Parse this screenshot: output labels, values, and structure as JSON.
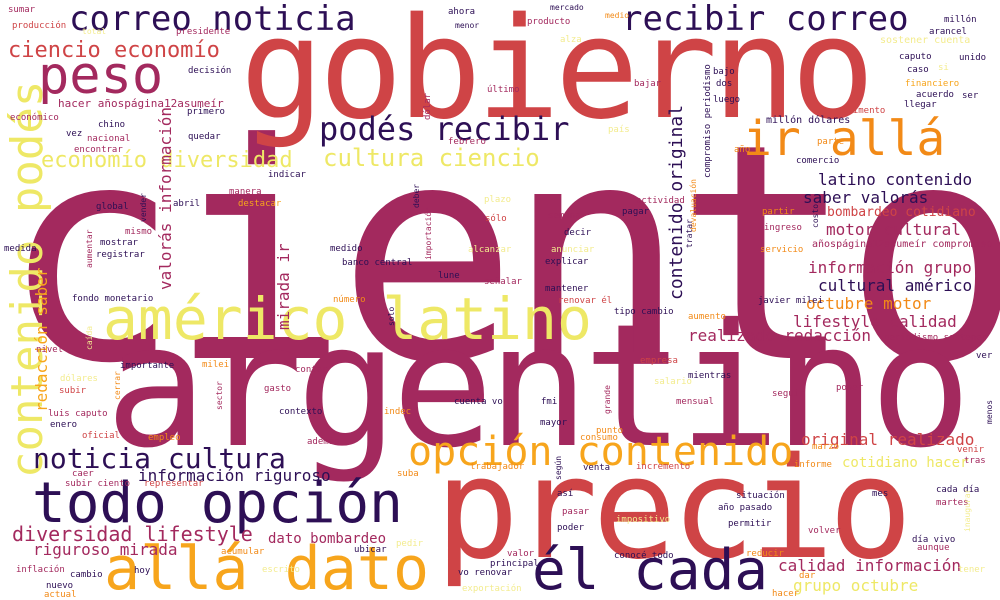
{
  "colors": {
    "dark_purple": "#2d0f55",
    "magenta": "#a3295e",
    "red": "#cf4446",
    "orange": "#f28a17",
    "amber": "#f7a51c",
    "yellow": "#eee866",
    "light_yellow": "#f3ec8f"
  },
  "words": [
    {
      "text": "ciento",
      "color": "#a3295e",
      "size": 300
    },
    {
      "text": "argentino",
      "color": "#a3295e",
      "size": 170
    },
    {
      "text": "gobierno",
      "color": "#cf4446",
      "size": 140
    },
    {
      "text": "precio",
      "color": "#cf4446",
      "size": 140
    },
    {
      "text": "américo latino",
      "color": "#eee866",
      "size": 58
    },
    {
      "text": "allá dato",
      "color": "#f7a51c",
      "size": 60
    },
    {
      "text": "todo opción",
      "color": "#2d0f55",
      "size": 56
    },
    {
      "text": "él cada",
      "color": "#2d0f55",
      "size": 56
    },
    {
      "text": "peso",
      "color": "#a3295e",
      "size": 52
    },
    {
      "text": "ir allá",
      "color": "#f28a17",
      "size": 48
    },
    {
      "text": "contenido podés",
      "color": "#eee866",
      "size": 44
    },
    {
      "text": "opción contenido",
      "color": "#f7a51c",
      "size": 40
    },
    {
      "text": "correo noticia",
      "color": "#2d0f55",
      "size": 34
    },
    {
      "text": "recibir correo",
      "color": "#2d0f55",
      "size": 34
    },
    {
      "text": "podés recibir",
      "color": "#2d0f55",
      "size": 32
    },
    {
      "text": "noticia cultura",
      "color": "#2d0f55",
      "size": 28
    },
    {
      "text": "cultura ciencio",
      "color": "#eee866",
      "size": 24
    },
    {
      "text": "economío diversidad",
      "color": "#eee866",
      "size": 22
    },
    {
      "text": "ciencio economío",
      "color": "#cf4446",
      "size": 22
    },
    {
      "text": "diversidad lifestyle",
      "color": "#a3295e",
      "size": 20
    },
    {
      "text": "contenido original",
      "color": "#2d0f55",
      "size": 18
    },
    {
      "text": "valorás información",
      "color": "#a3295e",
      "size": 16
    },
    {
      "text": "mirada ir",
      "color": "#a3295e",
      "size": 16
    },
    {
      "text": "redacción saber",
      "color": "#f7a51c",
      "size": 16
    },
    {
      "text": "latino contenido",
      "color": "#2d0f55",
      "size": 16
    },
    {
      "text": "saber valorás",
      "color": "#2d0f55",
      "size": 16
    },
    {
      "text": "motor cultural",
      "color": "#a3295e",
      "size": 16
    },
    {
      "text": "información grupo",
      "color": "#a3295e",
      "size": 16
    },
    {
      "text": "cultural américo",
      "color": "#2d0f55",
      "size": 16
    },
    {
      "text": "octubre motor",
      "color": "#f28a17",
      "size": 16
    },
    {
      "text": "lifestyle calidad",
      "color": "#a3295e",
      "size": 16
    },
    {
      "text": "realizado redacción",
      "color": "#a3295e",
      "size": 16
    },
    {
      "text": "original realizado",
      "color": "#cf4446",
      "size": 16
    },
    {
      "text": "información riguroso",
      "color": "#2d0f55",
      "size": 16
    },
    {
      "text": "calidad información",
      "color": "#a3295e",
      "size": 16
    },
    {
      "text": "grupo octubre",
      "color": "#eee866",
      "size": 16
    },
    {
      "text": "riguroso mirada",
      "color": "#a3295e",
      "size": 16
    },
    {
      "text": "dato bombardeo",
      "color": "#a3295e",
      "size": 14
    },
    {
      "text": "cotidiano hacer",
      "color": "#eee866",
      "size": 14
    },
    {
      "text": "bombardeo cotidiano",
      "color": "#cf4446",
      "size": 13
    },
    {
      "text": "hacer añospágina12asumeír",
      "color": "#a3295e",
      "size": 11
    },
    {
      "text": "añospágina12asumeír compromiso",
      "color": "#a3295e",
      "size": 10
    },
    {
      "text": "compromiso periodismo",
      "color": "#2d0f55",
      "size": 9
    },
    {
      "text": "periodismo sostener",
      "color": "#a3295e",
      "size": 9
    },
    {
      "text": "sostener cuenta",
      "color": "#f3ec8f",
      "size": 10
    },
    {
      "text": "millón dólares",
      "color": "#2d0f55",
      "size": 10
    },
    {
      "text": "fondo monetario",
      "color": "#2d0f55",
      "size": 9
    },
    {
      "text": "banco central",
      "color": "#2d0f55",
      "size": 9
    },
    {
      "text": "tipo cambio",
      "color": "#2d0f55",
      "size": 9
    },
    {
      "text": "javier milei",
      "color": "#2d0f55",
      "size": 9
    },
    {
      "text": "luis caputo",
      "color": "#a3295e",
      "size": 9
    },
    {
      "text": "cuenta vo",
      "color": "#2d0f55",
      "size": 9
    },
    {
      "text": "vo renovar",
      "color": "#2d0f55",
      "size": 9
    },
    {
      "text": "renovar él",
      "color": "#cf4446",
      "size": 9
    },
    {
      "text": "subir ciento",
      "color": "#a3295e",
      "size": 9
    },
    {
      "text": "día vivo",
      "color": "#2d0f55",
      "size": 9
    },
    {
      "text": "año pasado",
      "color": "#2d0f55",
      "size": 9
    },
    {
      "text": "cada día",
      "color": "#2d0f55",
      "size": 9
    },
    {
      "text": "conocé todo",
      "color": "#2d0f55",
      "size": 9
    },
    {
      "text": "sumar",
      "color": "#a3295e",
      "size": 9
    },
    {
      "text": "producción",
      "color": "#cf4446",
      "size": 9
    },
    {
      "text": "total",
      "color": "#f3ec8f",
      "size": 8
    },
    {
      "text": "presidente",
      "color": "#a3295e",
      "size": 9
    },
    {
      "text": "ahora",
      "color": "#2d0f55",
      "size": 9
    },
    {
      "text": "menor",
      "color": "#2d0f55",
      "size": 8
    },
    {
      "text": "producto",
      "color": "#a3295e",
      "size": 9
    },
    {
      "text": "mercado",
      "color": "#2d0f55",
      "size": 8
    },
    {
      "text": "medio",
      "color": "#f28a17",
      "size": 8
    },
    {
      "text": "alza",
      "color": "#f3ec8f",
      "size": 9
    },
    {
      "text": "millón",
      "color": "#2d0f55",
      "size": 9
    },
    {
      "text": "arancel",
      "color": "#2d0f55",
      "size": 9
    },
    {
      "text": "unido",
      "color": "#2d0f55",
      "size": 9
    },
    {
      "text": "si",
      "color": "#f3ec8f",
      "size": 9
    },
    {
      "text": "caputo",
      "color": "#2d0f55",
      "size": 9
    },
    {
      "text": "caso",
      "color": "#2d0f55",
      "size": 9
    },
    {
      "text": "financiero",
      "color": "#f7a51c",
      "size": 9
    },
    {
      "text": "acuerdo",
      "color": "#2d0f55",
      "size": 9
    },
    {
      "text": "ser",
      "color": "#2d0f55",
      "size": 9
    },
    {
      "text": "llegar",
      "color": "#2d0f55",
      "size": 9
    },
    {
      "text": "alimento",
      "color": "#cf4446",
      "size": 9
    },
    {
      "text": "decisión",
      "color": "#2d0f55",
      "size": 9
    },
    {
      "text": "primero",
      "color": "#2d0f55",
      "size": 9
    },
    {
      "text": "dólar",
      "color": "#a3295e",
      "size": 9
    },
    {
      "text": "último",
      "color": "#a3295e",
      "size": 9
    },
    {
      "text": "bajar",
      "color": "#a3295e",
      "size": 9
    },
    {
      "text": "bajo",
      "color": "#2d0f55",
      "size": 9
    },
    {
      "text": "dos",
      "color": "#2d0f55",
      "size": 9
    },
    {
      "text": "luego",
      "color": "#2d0f55",
      "size": 9
    },
    {
      "text": "económico",
      "color": "#a3295e",
      "size": 9
    },
    {
      "text": "chino",
      "color": "#2d0f55",
      "size": 9
    },
    {
      "text": "vez",
      "color": "#2d0f55",
      "size": 9
    },
    {
      "text": "nacional",
      "color": "#a3295e",
      "size": 9
    },
    {
      "text": "encontrar",
      "color": "#a3295e",
      "size": 9
    },
    {
      "text": "quedar",
      "color": "#2d0f55",
      "size": 9
    },
    {
      "text": "país",
      "color": "#f3ec8f",
      "size": 9
    },
    {
      "text": "febrero",
      "color": "#a3295e",
      "size": 9
    },
    {
      "text": "año",
      "color": "#f28a17",
      "size": 9
    },
    {
      "text": "parte",
      "color": "#f28a17",
      "size": 9
    },
    {
      "text": "comercio",
      "color": "#2d0f55",
      "size": 9
    },
    {
      "text": "devaluación",
      "color": "#f28a17",
      "size": 8
    },
    {
      "text": "indicar",
      "color": "#2d0f55",
      "size": 9
    },
    {
      "text": "manera",
      "color": "#a3295e",
      "size": 9
    },
    {
      "text": "abril",
      "color": "#2d0f55",
      "size": 9
    },
    {
      "text": "destacar",
      "color": "#f7a51c",
      "size": 9
    },
    {
      "text": "global",
      "color": "#2d0f55",
      "size": 9
    },
    {
      "text": "vender",
      "color": "#2d0f55",
      "size": 8
    },
    {
      "text": "mismo",
      "color": "#a3295e",
      "size": 9
    },
    {
      "text": "mostrar",
      "color": "#2d0f55",
      "size": 9
    },
    {
      "text": "registrar",
      "color": "#2d0f55",
      "size": 9
    },
    {
      "text": "aumentar",
      "color": "#a3295e",
      "size": 8
    },
    {
      "text": "medida",
      "color": "#2d0f55",
      "size": 9
    },
    {
      "text": "medido",
      "color": "#2d0f55",
      "size": 9
    },
    {
      "text": "importación",
      "color": "#a3295e",
      "size": 8
    },
    {
      "text": "deber",
      "color": "#2d0f55",
      "size": 8
    },
    {
      "text": "plazo",
      "color": "#f3ec8f",
      "size": 9
    },
    {
      "text": "sólo",
      "color": "#cf4446",
      "size": 9
    },
    {
      "text": "alcanzar",
      "color": "#f3ec8f",
      "size": 9
    },
    {
      "text": "semana",
      "color": "#a3295e",
      "size": 9
    },
    {
      "text": "decir",
      "color": "#2d0f55",
      "size": 9
    },
    {
      "text": "anunciar",
      "color": "#f3ec8f",
      "size": 9
    },
    {
      "text": "explicar",
      "color": "#2d0f55",
      "size": 9
    },
    {
      "text": "actividad",
      "color": "#a3295e",
      "size": 9
    },
    {
      "text": "pagar",
      "color": "#2d0f55",
      "size": 9
    },
    {
      "text": "tratar",
      "color": "#2d0f55",
      "size": 8
    },
    {
      "text": "partir",
      "color": "#f28a17",
      "size": 9
    },
    {
      "text": "ingreso",
      "color": "#a3295e",
      "size": 9
    },
    {
      "text": "servicio",
      "color": "#f28a17",
      "size": 9
    },
    {
      "text": "costo",
      "color": "#2d0f55",
      "size": 8
    },
    {
      "text": "lune",
      "color": "#2d0f55",
      "size": 9
    },
    {
      "text": "señalar",
      "color": "#a3295e",
      "size": 9
    },
    {
      "text": "mantener",
      "color": "#2d0f55",
      "size": 9
    },
    {
      "text": "número",
      "color": "#f28a17",
      "size": 9
    },
    {
      "text": "solo",
      "color": "#2d0f55",
      "size": 8
    },
    {
      "text": "aumento",
      "color": "#f28a17",
      "size": 9
    },
    {
      "text": "nivel",
      "color": "#a3295e",
      "size": 9
    },
    {
      "text": "caída",
      "color": "#f3ec8f",
      "size": 8
    },
    {
      "text": "milei",
      "color": "#f28a17",
      "size": 9
    },
    {
      "text": "importante",
      "color": "#2d0f55",
      "size": 9
    },
    {
      "text": "contar",
      "color": "#a3295e",
      "size": 9
    },
    {
      "text": "empresa",
      "color": "#cf4446",
      "size": 9
    },
    {
      "text": "mientras",
      "color": "#2d0f55",
      "size": 9
    },
    {
      "text": "salario",
      "color": "#f3ec8f",
      "size": 9
    },
    {
      "text": "seguir",
      "color": "#a3295e",
      "size": 9
    },
    {
      "text": "poner",
      "color": "#a3295e",
      "size": 9
    },
    {
      "text": "ver",
      "color": "#2d0f55",
      "size": 9
    },
    {
      "text": "dólares",
      "color": "#f3ec8f",
      "size": 9
    },
    {
      "text": "subir",
      "color": "#cf4446",
      "size": 9
    },
    {
      "text": "cerrar",
      "color": "#f28a17",
      "size": 8
    },
    {
      "text": "sector",
      "color": "#a3295e",
      "size": 8
    },
    {
      "text": "gasto",
      "color": "#a3295e",
      "size": 9
    },
    {
      "text": "contexto",
      "color": "#2d0f55",
      "size": 9
    },
    {
      "text": "indec",
      "color": "#f28a17",
      "size": 9
    },
    {
      "text": "grande",
      "color": "#a3295e",
      "size": 8
    },
    {
      "text": "mensual",
      "color": "#a3295e",
      "size": 9
    },
    {
      "text": "menos",
      "color": "#2d0f55",
      "size": 8
    },
    {
      "text": "enero",
      "color": "#2d0f55",
      "size": 9
    },
    {
      "text": "fmi",
      "color": "#2d0f55",
      "size": 9
    },
    {
      "text": "mayor",
      "color": "#2d0f55",
      "size": 9
    },
    {
      "text": "punto",
      "color": "#f28a17",
      "size": 9
    },
    {
      "text": "oficial",
      "color": "#cf4446",
      "size": 9
    },
    {
      "text": "empleo",
      "color": "#f28a17",
      "size": 9
    },
    {
      "text": "además",
      "color": "#a3295e",
      "size": 9
    },
    {
      "text": "consumo",
      "color": "#f28a17",
      "size": 9
    },
    {
      "text": "marzo",
      "color": "#f28a17",
      "size": 9
    },
    {
      "text": "venir",
      "color": "#cf4446",
      "size": 9
    },
    {
      "text": "tras",
      "color": "#a3295e",
      "size": 9
    },
    {
      "text": "informe",
      "color": "#f28a17",
      "size": 9
    },
    {
      "text": "caer",
      "color": "#a3295e",
      "size": 9
    },
    {
      "text": "representar",
      "color": "#cf4446",
      "size": 9
    },
    {
      "text": "suba",
      "color": "#f28a17",
      "size": 9
    },
    {
      "text": "trabajador",
      "color": "#f28a17",
      "size": 9
    },
    {
      "text": "según",
      "color": "#2d0f55",
      "size": 8
    },
    {
      "text": "venta",
      "color": "#2d0f55",
      "size": 9
    },
    {
      "text": "incremento",
      "color": "#cf4446",
      "size": 9
    },
    {
      "text": "mes",
      "color": "#2d0f55",
      "size": 9
    },
    {
      "text": "así",
      "color": "#2d0f55",
      "size": 9
    },
    {
      "text": "situación",
      "color": "#2d0f55",
      "size": 9
    },
    {
      "text": "martes",
      "color": "#a3295e",
      "size": 9
    },
    {
      "text": "inaugurar",
      "color": "#f3ec8f",
      "size": 8
    },
    {
      "text": "pasar",
      "color": "#a3295e",
      "size": 9
    },
    {
      "text": "poder",
      "color": "#2d0f55",
      "size": 9
    },
    {
      "text": "impositivo",
      "color": "#f3ec8f",
      "size": 9
    },
    {
      "text": "permitir",
      "color": "#2d0f55",
      "size": 9
    },
    {
      "text": "volver",
      "color": "#a3295e",
      "size": 9
    },
    {
      "text": "aunque",
      "color": "#a3295e",
      "size": 9
    },
    {
      "text": "acumular",
      "color": "#f28a17",
      "size": 9
    },
    {
      "text": "pedir",
      "color": "#f3ec8f",
      "size": 9
    },
    {
      "text": "ubicar",
      "color": "#2d0f55",
      "size": 9
    },
    {
      "text": "valor",
      "color": "#a3295e",
      "size": 9
    },
    {
      "text": "principal",
      "color": "#2d0f55",
      "size": 9
    },
    {
      "text": "reducir",
      "color": "#f28a17",
      "size": 9
    },
    {
      "text": "hoy",
      "color": "#2d0f55",
      "size": 9
    },
    {
      "text": "inflación",
      "color": "#a3295e",
      "size": 9
    },
    {
      "text": "cambio",
      "color": "#2d0f55",
      "size": 9
    },
    {
      "text": "nuevo",
      "color": "#2d0f55",
      "size": 9
    },
    {
      "text": "actual",
      "color": "#f28a17",
      "size": 9
    },
    {
      "text": "escrito",
      "color": "#f3ec8f",
      "size": 9
    },
    {
      "text": "exportación",
      "color": "#f3ec8f",
      "size": 9
    },
    {
      "text": "dar",
      "color": "#f28a17",
      "size": 9
    },
    {
      "text": "hacer",
      "color": "#f28a17",
      "size": 9
    },
    {
      "text": "tener",
      "color": "#f3ec8f",
      "size": 9
    }
  ]
}
